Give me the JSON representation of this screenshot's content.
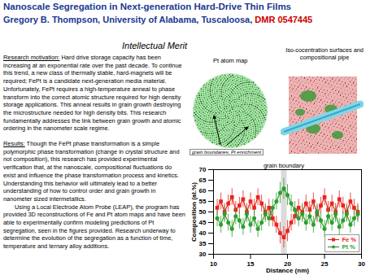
{
  "header": {
    "title": "Nanoscale Segregation in Next-generation Hard-Drive Thin Films",
    "author": "Gregory B. Thompson, University of Alabama, Tuscaloosa,",
    "grant": "DMR 0547445"
  },
  "section_title": "Intellectual Merit",
  "paragraphs": [
    {
      "label": "Research motivation:",
      "text": "Hard drive storage capacity has been increasing at an exponential rate over the past decade. To continue this trend, a new class of thermally stable, hard-magnets will be required; FePt is a candidate next-generation media material. Unfortunately, FePt requires a high-temperature anneal to phase transform into the correct atomic structure required for high density storage applications. This anneal results in grain growth destroying the microstructure needed for high density bits. This research fundamentally addresses the link between grain growth and atomic ordering in the nanometer scale regime."
    },
    {
      "label": "Results:",
      "text": "Though the FePt phase transformation is a simple polymorphic phase transformation (change in crystal structure and not composition), this research has provided experimental verification that, at the nanoscale, compositional fluctuations do exist and influence the phase transformation process and kinetics. Understanding this behavior will ultimately lead to a better understanding of how to control order and grain growth in nanometer sized intermetallics."
    },
    {
      "text": "Using a Local Electrode Atom Probe (LEAP), the program has provided 3D reconstructions of Fe and Pt atom maps and have been able to experimentally confirm modeling predictions of Pt segregation, seen in the figures provided. Research underway to determine the evolution of the segregation as a function of time, temperature and ternary alloy additions."
    }
  ],
  "figures": {
    "atom_map": {
      "title": "Pt atom map",
      "caption": "grain boundaries, Pt enrichment"
    },
    "iso_surface": {
      "title": "Iso-cocentration surfaces and compositional pipe"
    }
  },
  "chart_data": {
    "type": "line",
    "x_label": "Distance (nm)",
    "y_label": "Composition (at.%)",
    "x": [
      10.5,
      11,
      11.5,
      12,
      12.5,
      13,
      13.5,
      14,
      14.5,
      15,
      15.5,
      16,
      16.5,
      17,
      17.5,
      18,
      18.5,
      19,
      19.5,
      20,
      20.5,
      21,
      21.5,
      22,
      22.5,
      23,
      23.5,
      24,
      24.5,
      25,
      25.5,
      26,
      26.5,
      27,
      27.5,
      28,
      28.5,
      29,
      29.5
    ],
    "series": [
      {
        "name": "Fe %",
        "color": "#e8251f",
        "marker": "square",
        "line_style": "solid",
        "values": [
          52,
          55,
          50,
          54,
          57,
          51,
          53,
          56,
          50,
          55,
          52,
          57,
          54,
          50,
          52,
          47,
          44,
          40,
          38,
          41,
          45,
          48,
          52,
          50,
          54,
          51,
          55,
          49,
          53,
          57,
          51,
          54,
          50,
          56,
          53,
          50,
          55,
          52,
          50
        ],
        "errors": [
          4,
          4,
          4,
          4,
          4,
          4,
          4,
          4,
          4,
          4,
          4,
          4,
          4,
          4,
          4,
          4,
          4,
          5,
          5,
          5,
          4,
          4,
          4,
          4,
          4,
          4,
          4,
          4,
          4,
          4,
          4,
          4,
          4,
          4,
          4,
          4,
          4,
          4,
          4
        ]
      },
      {
        "name": "Pt %",
        "color": "#2e9e2e",
        "marker": "circle",
        "line_style": "solid",
        "values": [
          47,
          44,
          49,
          45,
          42,
          48,
          46,
          43,
          49,
          44,
          47,
          42,
          45,
          49,
          47,
          52,
          55,
          59,
          61,
          58,
          54,
          51,
          47,
          49,
          45,
          48,
          44,
          50,
          46,
          42,
          48,
          45,
          49,
          43,
          46,
          49,
          44,
          47,
          49
        ],
        "errors": [
          4,
          4,
          4,
          4,
          4,
          4,
          4,
          4,
          4,
          4,
          4,
          4,
          4,
          4,
          4,
          4,
          4,
          5,
          5,
          5,
          4,
          4,
          4,
          4,
          4,
          4,
          4,
          4,
          4,
          4,
          4,
          4,
          4,
          4,
          4,
          4,
          4,
          4,
          4
        ]
      }
    ],
    "annotations": [
      {
        "text": "grain boundary",
        "x": 19.5
      }
    ],
    "xlim": [
      10,
      30
    ],
    "xticks": [
      10,
      15,
      20,
      25,
      30
    ],
    "ylim": [
      30,
      70
    ],
    "yticks": [
      30,
      35,
      40,
      45,
      50,
      55,
      60,
      65,
      70
    ],
    "grid": false,
    "legend": "bottom-right"
  }
}
